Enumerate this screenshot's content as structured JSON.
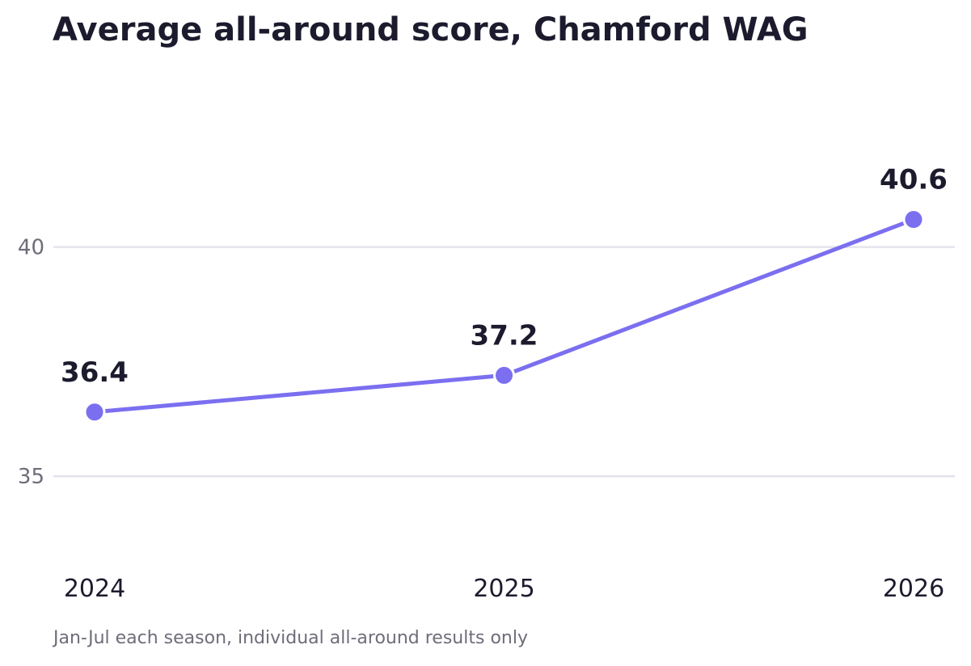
{
  "chart_data": {
    "type": "line",
    "title": "Average all-around score, Chamford WAG",
    "note": "Jan-Jul each season, individual all-around results only",
    "xlabel": "",
    "ylabel": "",
    "categories": [
      "2024",
      "2025",
      "2026"
    ],
    "series": [
      {
        "values": [
          36.4,
          37.2,
          40.6
        ],
        "labels": [
          "36.4",
          "37.2",
          "40.6"
        ],
        "color": "#7b6ff0"
      }
    ],
    "y_ticks": [
      35,
      40
    ],
    "y_tick_labels": [
      "35",
      "40"
    ],
    "ylim": [
      33.4,
      43.8
    ],
    "grid": true,
    "legend": "none",
    "colors": {
      "line": "#7b6ff0",
      "grid": "#e4e3ec",
      "text": "#1c1b2e",
      "muted": "#6e6d7a"
    }
  }
}
